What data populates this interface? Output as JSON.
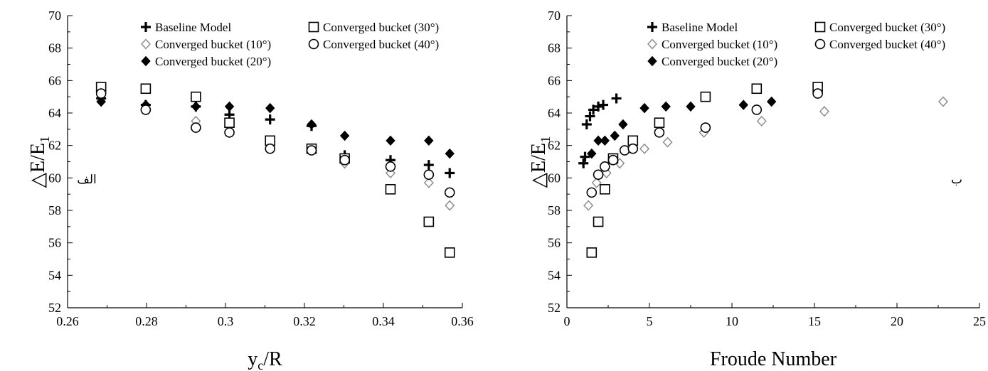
{
  "chart_data": [
    {
      "type": "scatter",
      "xlabel_main": "y",
      "xlabel_sub": "c",
      "xlabel_tail": "/R",
      "ylabel_main": "△E/E",
      "ylabel_sub": "1",
      "xlim": [
        0.26,
        0.36
      ],
      "ylim": [
        52,
        70
      ],
      "xticks": [
        "0.26",
        "0.28",
        "0.3",
        "0.32",
        "0.34",
        "0.36"
      ],
      "yticks": [
        "52",
        "54",
        "56",
        "58",
        "60",
        "62",
        "64",
        "66",
        "68",
        "70"
      ],
      "panel_label": "الف",
      "legend_position": "top",
      "legend": [
        {
          "label": "Baseline Model",
          "marker": "plus"
        },
        {
          "label": "Converged bucket (30°)",
          "marker": "square"
        },
        {
          "label": "Converged bucket (10°)",
          "marker": "diamond-open"
        },
        {
          "label": "Converged bucket (40°)",
          "marker": "circle"
        },
        {
          "label": "Converged bucket (20°)",
          "marker": "diamond-filled"
        }
      ],
      "series": [
        {
          "name": "Baseline Model",
          "marker": "plus",
          "x": [
            0.2685,
            0.2798,
            0.2925,
            0.301,
            0.3113,
            0.3218,
            0.3302,
            0.3418,
            0.3515,
            0.3568
          ],
          "y": [
            64.9,
            64.5,
            64.4,
            63.9,
            63.6,
            63.2,
            61.4,
            61.1,
            60.8,
            60.3
          ]
        },
        {
          "name": "Converged bucket (10°)",
          "marker": "diamond-open",
          "x": [
            0.2685,
            0.2798,
            0.2925,
            0.301,
            0.3113,
            0.3218,
            0.3302,
            0.3418,
            0.3515,
            0.3568
          ],
          "y": [
            64.7,
            64.2,
            63.5,
            62.8,
            62.1,
            61.8,
            60.9,
            60.3,
            59.7,
            58.3
          ]
        },
        {
          "name": "Converged bucket (20°)",
          "marker": "diamond-filled",
          "x": [
            0.2685,
            0.2798,
            0.2925,
            0.301,
            0.3113,
            0.3218,
            0.3302,
            0.3418,
            0.3515,
            0.3568
          ],
          "y": [
            64.7,
            64.5,
            64.4,
            64.4,
            64.3,
            63.3,
            62.6,
            62.3,
            62.3,
            61.5
          ]
        },
        {
          "name": "Converged bucket (30°)",
          "marker": "square",
          "x": [
            0.2685,
            0.2798,
            0.2925,
            0.301,
            0.3113,
            0.3218,
            0.3302,
            0.3418,
            0.3515,
            0.3568
          ],
          "y": [
            65.6,
            65.5,
            65.0,
            63.4,
            62.3,
            61.8,
            61.2,
            59.3,
            57.3,
            55.4
          ]
        },
        {
          "name": "Converged bucket (40°)",
          "marker": "circle",
          "x": [
            0.2685,
            0.2798,
            0.2925,
            0.301,
            0.3113,
            0.3218,
            0.3302,
            0.3418,
            0.3515,
            0.3568
          ],
          "y": [
            65.2,
            64.2,
            63.1,
            62.8,
            61.8,
            61.7,
            61.1,
            60.7,
            60.2,
            59.1
          ]
        }
      ]
    },
    {
      "type": "scatter",
      "xlabel": "Froude Number",
      "ylabel_main": "△E/E",
      "ylabel_sub": "1",
      "xlim": [
        0,
        25
      ],
      "ylim": [
        52,
        70
      ],
      "xticks": [
        "0",
        "5",
        "10",
        "15",
        "20",
        "25"
      ],
      "yticks": [
        "52",
        "54",
        "56",
        "58",
        "60",
        "62",
        "64",
        "66",
        "68",
        "70"
      ],
      "panel_label": "ب",
      "legend_position": "top",
      "legend": [
        {
          "label": "Baseline Model",
          "marker": "plus"
        },
        {
          "label": "Converged bucket (30°)",
          "marker": "square"
        },
        {
          "label": "Converged bucket (10°)",
          "marker": "diamond-open"
        },
        {
          "label": "Converged bucket (40°)",
          "marker": "circle"
        },
        {
          "label": "Converged bucket (20°)",
          "marker": "diamond-filled"
        }
      ],
      "series": [
        {
          "name": "Baseline Model",
          "marker": "plus",
          "x": [
            1.0,
            1.1,
            1.2,
            1.4,
            1.6,
            1.9,
            2.2,
            3.0
          ],
          "y": [
            60.9,
            61.3,
            63.3,
            63.8,
            64.2,
            64.4,
            64.5,
            64.9
          ]
        },
        {
          "name": "Converged bucket (10°)",
          "marker": "diamond-open",
          "x": [
            1.3,
            1.8,
            2.4,
            3.2,
            4.7,
            6.1,
            8.3,
            11.8,
            15.6,
            22.8
          ],
          "y": [
            58.3,
            59.7,
            60.3,
            60.9,
            61.8,
            62.2,
            62.8,
            63.5,
            64.1,
            64.7
          ]
        },
        {
          "name": "Converged bucket (20°)",
          "marker": "diamond-filled",
          "x": [
            1.5,
            1.9,
            2.3,
            2.9,
            3.4,
            4.7,
            6.0,
            7.5,
            10.7,
            12.4
          ],
          "y": [
            61.5,
            62.3,
            62.3,
            62.6,
            63.3,
            64.3,
            64.4,
            64.4,
            64.5,
            64.7
          ]
        },
        {
          "name": "Converged bucket (30°)",
          "marker": "square",
          "x": [
            1.5,
            1.9,
            2.3,
            2.8,
            4.0,
            5.6,
            8.4,
            11.5,
            15.2
          ],
          "y": [
            55.4,
            57.3,
            59.3,
            61.2,
            62.3,
            63.4,
            65.0,
            65.5,
            65.6
          ]
        },
        {
          "name": "Converged bucket (40°)",
          "marker": "circle",
          "x": [
            1.5,
            1.9,
            2.3,
            2.8,
            3.5,
            4.0,
            5.6,
            8.4,
            11.5,
            15.2
          ],
          "y": [
            59.1,
            60.2,
            60.7,
            61.1,
            61.7,
            61.8,
            62.8,
            63.1,
            64.2,
            65.2
          ]
        }
      ]
    }
  ]
}
